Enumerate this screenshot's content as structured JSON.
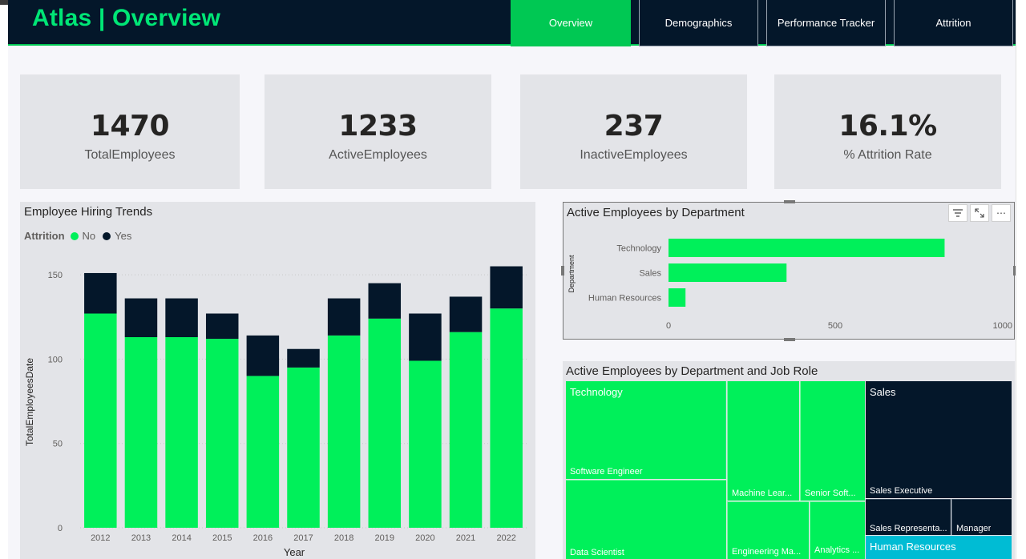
{
  "header": {
    "title": "Atlas | Overview",
    "tabs": [
      {
        "label": "Overview",
        "active": true
      },
      {
        "label": "Demographics",
        "active": false
      },
      {
        "label": "Performance Tracker",
        "active": false
      },
      {
        "label": "Attrition",
        "active": false
      }
    ]
  },
  "kpis": [
    {
      "value": "1470",
      "label": "TotalEmployees"
    },
    {
      "value": "1233",
      "label": "ActiveEmployees"
    },
    {
      "value": "237",
      "label": "InactiveEmployees"
    },
    {
      "value": "16.1%",
      "label": "% Attrition Rate"
    }
  ],
  "colors": {
    "green": "#00f05a",
    "navy": "#04172a",
    "cyan": "#00bcd4",
    "accent": "#00c853"
  },
  "hiring_chart": {
    "title": "Employee Hiring Trends",
    "legend_title": "Attrition",
    "legend": [
      "No",
      "Yes"
    ],
    "chart_data": {
      "type": "bar",
      "stacked": true,
      "categories": [
        "2012",
        "2013",
        "2014",
        "2015",
        "2016",
        "2017",
        "2018",
        "2019",
        "2020",
        "2021",
        "2022"
      ],
      "series": [
        {
          "name": "No",
          "values": [
            127,
            113,
            113,
            112,
            90,
            95,
            114,
            124,
            99,
            116,
            130
          ]
        },
        {
          "name": "Yes",
          "values": [
            24,
            23,
            23,
            15,
            24,
            11,
            22,
            21,
            28,
            21,
            25
          ]
        }
      ],
      "xlabel": "Year",
      "ylabel": "TotalEmployeesDate",
      "ylim": [
        0,
        160
      ],
      "yticks": [
        0,
        50,
        100,
        150
      ],
      "grid": true,
      "legend_position": "top-left"
    }
  },
  "dept_chart": {
    "title": "Active Employees by Department",
    "chart_data": {
      "type": "bar",
      "orientation": "horizontal",
      "categories": [
        "Technology",
        "Sales",
        "Human Resources"
      ],
      "values": [
        828,
        354,
        51
      ],
      "ylabel": "Department",
      "xlim": [
        0,
        1000
      ],
      "xticks": [
        0,
        500,
        1000
      ]
    }
  },
  "treemap": {
    "title": "Active Employees by Department and Job Role",
    "groups": [
      "Technology",
      "Sales",
      "Human Resources"
    ],
    "roles": {
      "software_engineer": "Software Engineer",
      "data_scientist": "Data Scientist",
      "machine_learning": "Machine Lear...",
      "senior_software": "Senior Soft...",
      "engineering_manager": "Engineering Ma...",
      "analytics": "Analytics ...",
      "sales_executive": "Sales Executive",
      "sales_representative": "Sales Representa...",
      "manager": "Manager"
    }
  }
}
